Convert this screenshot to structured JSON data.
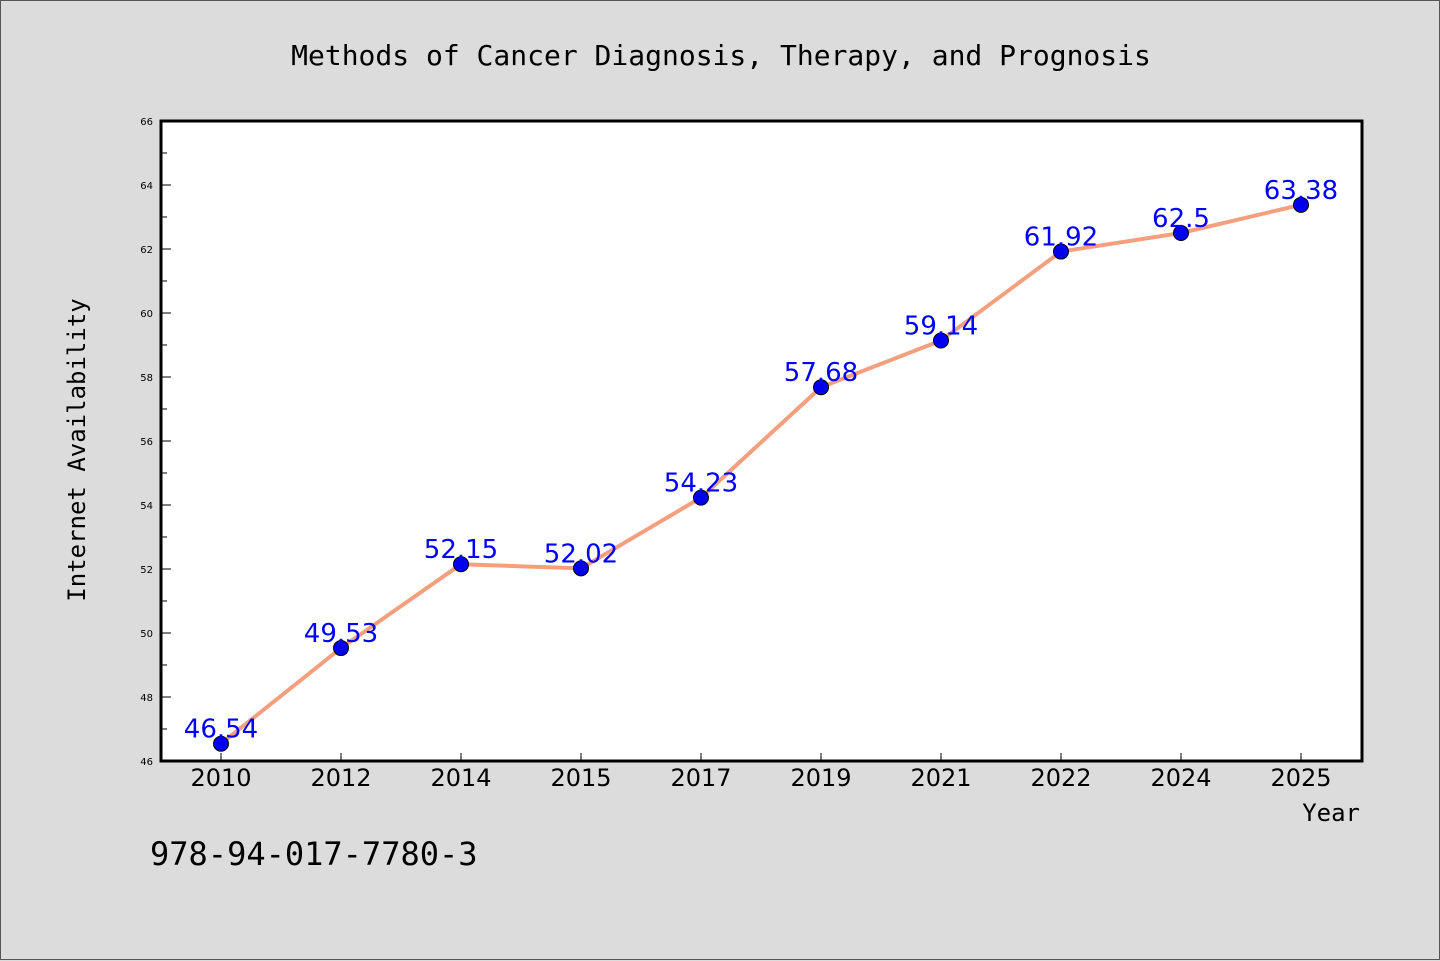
{
  "chart_data": {
    "type": "line",
    "title": "Methods of Cancer Diagnosis, Therapy, and Prognosis",
    "xlabel": "Year",
    "ylabel": "Internet Availability",
    "categories": [
      "2010",
      "2012",
      "2014",
      "2015",
      "2017",
      "2019",
      "2021",
      "2022",
      "2024",
      "2025"
    ],
    "values": [
      46.54,
      49.53,
      52.15,
      52.02,
      54.23,
      57.68,
      59.14,
      61.92,
      62.5,
      63.38
    ],
    "data_labels": [
      "46.54",
      "49.53",
      "52.15",
      "52.02",
      "54.23",
      "57.68",
      "59.14",
      "61.92",
      "62.5",
      "63.38"
    ],
    "ylim": [
      46,
      66
    ],
    "yticks": [
      "46",
      "48",
      "50",
      "52",
      "54",
      "56",
      "58",
      "60",
      "62",
      "64",
      "66"
    ],
    "grid": false,
    "legend": "none",
    "line_color": "#f4a07e",
    "marker_color": "#0000ee",
    "label_color": "#0000ff"
  },
  "footer": {
    "isbn": "978-94-017-7780-3"
  }
}
